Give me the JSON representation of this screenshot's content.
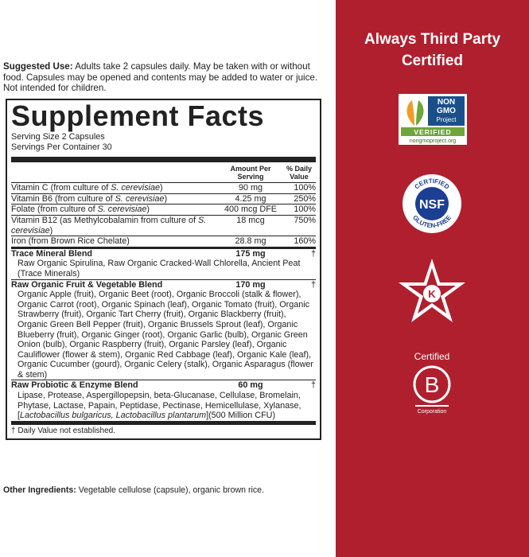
{
  "suggested_use": {
    "label": "Suggested Use:",
    "text": "Adults take 2 capsules daily. May be taken with or without food. Capsules may be opened and contents may be added to water or juice. Not intended for children."
  },
  "facts": {
    "title": "Supplement Facts",
    "serving_size": "Serving Size 2 Capsules",
    "servings_per_container": "Servings Per Container 30",
    "header": {
      "amount": "Amount Per Serving",
      "dv": "% Daily Value"
    },
    "nutrients": [
      {
        "name": [
          "Vitamin C (from culture of ",
          "S. cerevisiae",
          ")"
        ],
        "amount": "90 mg",
        "dv": "100%"
      },
      {
        "name": [
          "Vitamin B6 (from culture of ",
          "S. cerevisiae",
          ")"
        ],
        "amount": "4.25 mg",
        "dv": "250%"
      },
      {
        "name": [
          "Folate (from culture of ",
          "S. cerevisiae",
          ")"
        ],
        "amount": "400 mcg DFE",
        "dv": "100%"
      },
      {
        "name": [
          "Vitamin B12 (as Methylcobalamin from culture of ",
          "S. cerevisiae",
          ")"
        ],
        "amount": "18 mcg",
        "dv": "750%"
      },
      {
        "name": [
          "Iron (from Brown Rice Chelate)"
        ],
        "amount": "28.8 mg",
        "dv": "160%"
      }
    ],
    "blends": [
      {
        "name": "Trace Mineral Blend",
        "amount": "175 mg",
        "dv": "†",
        "ingredients": [
          "Raw Organic Spirulina, Raw Organic Cracked-Wall Chlorella, Ancient Peat (Trace Minerals)"
        ]
      },
      {
        "name": "Raw Organic Fruit & Vegetable Blend",
        "amount": "170 mg",
        "dv": "†",
        "ingredients": [
          "Organic Apple (fruit), Organic Beet (root), Organic Broccoli (stalk & flower), Organic Carrot (root), Organic Spinach (leaf), Organic Tomato (fruit), Organic Strawberry (fruit), Organic Tart Cherry (fruit), Organic Blackberry (fruit), Organic Green Bell Pepper (fruit), Organic Brussels Sprout (leaf), Organic Blueberry (fruit), Organic Ginger (root), Organic Garlic (bulb), Organic Green Onion (bulb), Organic Raspberry (fruit), Organic Parsley (leaf), Organic Cauliflower (flower & stem), Organic Red Cabbage (leaf), Organic Kale (leaf), Organic Cucumber (gourd), Organic Celery (stalk), Organic Asparagus (flower & stem)"
        ]
      },
      {
        "name": "Raw Probiotic & Enzyme Blend",
        "amount": "60 mg",
        "dv": "†",
        "ingredients": [
          "Lipase, Protease, Aspergillopepsin, beta-Glucanase, Cellulase, Bromelain, Phytase, Lactase, Papain, Peptidase, Pectinase, Hemicellulase, Xylanase, [",
          "Lactobacillus bulgaricus, Lactobacillus plantarum",
          "](500 Million CFU)"
        ]
      }
    ],
    "footnote": "† Daily Value not established."
  },
  "other_ingredients": {
    "label": "Other Ingredients:",
    "text": "Vegetable cellulose (capsule), organic brown rice."
  },
  "certifications": {
    "title": "Always Third Party Certified",
    "non_gmo": {
      "line1": "NON",
      "line2": "GMO",
      "line3": "Project",
      "band": "VERIFIED",
      "url": "nongmoproject.org"
    },
    "nsf": {
      "top": "CERTIFIED",
      "center": "NSF",
      "bottom": "GLUTEN-FREE"
    },
    "kosher": {
      "letter": "K"
    },
    "b_corp": {
      "top": "Certified",
      "letter": "B",
      "bottom": "Corporation"
    }
  }
}
